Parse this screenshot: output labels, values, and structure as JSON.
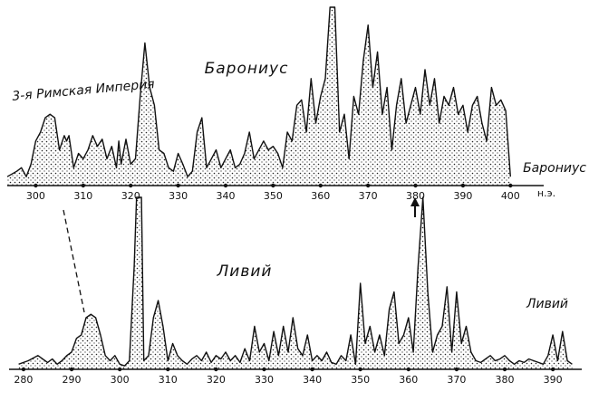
{
  "chart_data": [
    {
      "type": "line",
      "title": "Барониус",
      "annotation": "3-я Римская Империя",
      "end_label": "Барониус",
      "x_unit_label": "н.э.",
      "color": "#111",
      "x": [
        294,
        296,
        297,
        298,
        299,
        300,
        301,
        302,
        303,
        304,
        305,
        306,
        306.5,
        307,
        308,
        309,
        310,
        311,
        312,
        313,
        314,
        315,
        316,
        317,
        317.5,
        318,
        319,
        320,
        321,
        322,
        323,
        324,
        325,
        326,
        327,
        328,
        329,
        330,
        331,
        332,
        333,
        334,
        335,
        336,
        337,
        338,
        339,
        340,
        341,
        342,
        343,
        344,
        345,
        346,
        347,
        348,
        349,
        350,
        351,
        352,
        353,
        354,
        355,
        356,
        357,
        358,
        359,
        360,
        361,
        362,
        363,
        364,
        365,
        366,
        367,
        368,
        369,
        370,
        371,
        372,
        373,
        374,
        375,
        376,
        377,
        378,
        379,
        380,
        381,
        382,
        383,
        384,
        385,
        386,
        387,
        388,
        389,
        390,
        391,
        392,
        393,
        394,
        395,
        396,
        397,
        398,
        399,
        400
      ],
      "values": [
        5,
        8,
        10,
        5,
        12,
        25,
        30,
        38,
        40,
        38,
        20,
        28,
        25,
        28,
        10,
        18,
        15,
        20,
        28,
        22,
        26,
        15,
        22,
        10,
        25,
        12,
        26,
        12,
        15,
        50,
        80,
        55,
        45,
        20,
        18,
        10,
        8,
        18,
        12,
        5,
        8,
        30,
        38,
        10,
        15,
        20,
        10,
        15,
        20,
        10,
        12,
        18,
        30,
        15,
        20,
        25,
        20,
        22,
        18,
        10,
        30,
        25,
        45,
        48,
        30,
        60,
        35,
        50,
        60,
        100,
        100,
        30,
        40,
        15,
        50,
        40,
        70,
        90,
        55,
        75,
        40,
        55,
        20,
        45,
        60,
        35,
        45,
        55,
        40,
        65,
        45,
        60,
        35,
        50,
        45,
        55,
        40,
        45,
        30,
        45,
        50,
        35,
        25,
        55,
        45,
        48,
        42,
        5
      ],
      "xlim": [
        294,
        407
      ],
      "ylim": [
        0,
        100
      ],
      "xticks": [
        300,
        310,
        320,
        330,
        340,
        350,
        360,
        370,
        380,
        390,
        400
      ]
    },
    {
      "type": "line",
      "title": "Ливий",
      "end_label": "Ливий",
      "color": "#111",
      "x": [
        279,
        281,
        283,
        285,
        286,
        287,
        288,
        289,
        290,
        291,
        292,
        293,
        294,
        295,
        296,
        297,
        298,
        299,
        300,
        301,
        302,
        303,
        303.5,
        304.5,
        305,
        306,
        307,
        308,
        309,
        310,
        311,
        312,
        313,
        314,
        315,
        316,
        317,
        318,
        319,
        320,
        321,
        322,
        323,
        324,
        325,
        326,
        327,
        328,
        329,
        330,
        331,
        332,
        333,
        334,
        335,
        336,
        337,
        338,
        339,
        340,
        341,
        342,
        343,
        344,
        345,
        346,
        347,
        348,
        349,
        350,
        351,
        352,
        353,
        354,
        355,
        356,
        357,
        358,
        359,
        360,
        361,
        362,
        363,
        364,
        365,
        366,
        367,
        368,
        369,
        370,
        371,
        372,
        373,
        374,
        375,
        376,
        377,
        378,
        379,
        380,
        381,
        382,
        383,
        384,
        385,
        386,
        387,
        388,
        389,
        390,
        391,
        392,
        393,
        394
      ],
      "values": [
        3,
        5,
        8,
        4,
        6,
        3,
        5,
        8,
        10,
        18,
        20,
        30,
        32,
        30,
        20,
        8,
        5,
        8,
        3,
        2,
        5,
        60,
        100,
        100,
        5,
        8,
        30,
        40,
        25,
        5,
        15,
        8,
        5,
        3,
        6,
        8,
        5,
        10,
        4,
        8,
        6,
        10,
        5,
        8,
        4,
        12,
        5,
        25,
        10,
        15,
        5,
        22,
        8,
        25,
        10,
        30,
        12,
        8,
        20,
        5,
        8,
        5,
        10,
        4,
        3,
        8,
        5,
        20,
        3,
        50,
        15,
        25,
        10,
        20,
        8,
        35,
        45,
        15,
        20,
        30,
        10,
        60,
        100,
        45,
        10,
        20,
        25,
        48,
        10,
        45,
        15,
        25,
        10,
        5,
        4,
        6,
        8,
        5,
        6,
        8,
        5,
        3,
        5,
        4,
        6,
        5,
        4,
        3,
        8,
        20,
        5,
        22,
        5,
        3
      ],
      "xlim": [
        277,
        396
      ],
      "ylim": [
        0,
        100
      ],
      "xticks": [
        280,
        290,
        300,
        310,
        320,
        330,
        340,
        350,
        360,
        370,
        380,
        390
      ]
    }
  ]
}
